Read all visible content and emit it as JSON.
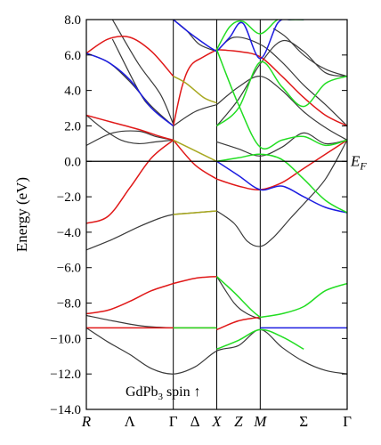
{
  "chart_data": {
    "type": "line",
    "ylabel": "Energy (eV)",
    "ylim": [
      -14.0,
      8.0
    ],
    "y_ticks": [
      8.0,
      6.0,
      4.0,
      2.0,
      0.0,
      -2.0,
      -4.0,
      -6.0,
      -8.0,
      -10.0,
      -12.0,
      -14.0
    ],
    "y_tick_labels": [
      "8.0",
      "6.0",
      "4.0",
      "2.0",
      "0.0",
      "−2.0",
      "−4.0",
      "−6.0",
      "−8.0",
      "−10.0",
      "−12.0",
      "−14.0"
    ],
    "xlim": [
      0,
      6
    ],
    "k_points": [
      {
        "label": "R",
        "x": 0,
        "italic": true,
        "vline": false
      },
      {
        "label": "Λ",
        "x": 1,
        "italic": false,
        "vline": false
      },
      {
        "label": "Γ",
        "x": 2,
        "italic": false,
        "vline": true
      },
      {
        "label": "Δ",
        "x": 2.5,
        "italic": false,
        "vline": false
      },
      {
        "label": "X",
        "x": 3,
        "italic": true,
        "vline": true
      },
      {
        "label": "Z",
        "x": 3.5,
        "italic": true,
        "vline": false
      },
      {
        "label": "M",
        "x": 4,
        "italic": true,
        "vline": true
      },
      {
        "label": "Σ",
        "x": 5,
        "italic": false,
        "vline": false
      },
      {
        "label": "Γ",
        "x": 6,
        "italic": false,
        "vline": false
      }
    ],
    "fermi_level": 0.0,
    "fermi_label": "E",
    "fermi_label_sub": "F",
    "annotation": {
      "text": "GdPb",
      "sub": "3",
      "suffix": " spin ↑"
    },
    "colors": {
      "black": "#3a3a3a",
      "red": "#e01818",
      "blue": "#1c1ce0",
      "green": "#22dd22",
      "olive": "#a8a820"
    },
    "series": [
      {
        "color": "black",
        "x": [
          0,
          0.5,
          1,
          1.5,
          2,
          2.5,
          3,
          3.5,
          4,
          4.5,
          5,
          5.5,
          6
        ],
        "y": [
          -9.4,
          -10.2,
          -10.9,
          -11.7,
          -12.0,
          -11.6,
          -10.7,
          -10.4,
          -9.5,
          -10.5,
          -11.3,
          -11.8,
          -12.0
        ]
      },
      {
        "color": "black",
        "x": [
          0,
          0.6,
          1.3,
          2
        ],
        "y": [
          -8.7,
          -9.0,
          -9.3,
          -9.4
        ]
      },
      {
        "color": "black",
        "x": [
          0,
          0.6,
          1.2,
          1.7,
          2,
          2.5,
          3
        ],
        "y": [
          -5.0,
          -4.4,
          -3.7,
          -3.2,
          -3.0,
          -2.9,
          -2.8
        ]
      },
      {
        "color": "black",
        "x": [
          3,
          3.4,
          3.7,
          4,
          4.3,
          4.7,
          5,
          5.5,
          6
        ],
        "y": [
          -2.8,
          -3.5,
          -4.5,
          -4.8,
          -4.3,
          -3.2,
          -2.4,
          -1.0,
          1.2
        ]
      },
      {
        "color": "black",
        "x": [
          0,
          0.4,
          0.8,
          1.2,
          1.6,
          2
        ],
        "y": [
          2.6,
          1.8,
          1.2,
          1.0,
          1.1,
          1.2
        ]
      },
      {
        "color": "black",
        "x": [
          0,
          0.6,
          1.2,
          1.6,
          2
        ],
        "y": [
          0.9,
          1.6,
          1.7,
          1.4,
          1.2
        ]
      },
      {
        "color": "black",
        "x": [
          0,
          0.5,
          1,
          1.5,
          2
        ],
        "y": [
          6.1,
          5.6,
          4.5,
          3.1,
          2.0
        ]
      },
      {
        "color": "black",
        "x": [
          0.6,
          1.2,
          1.7,
          2
        ],
        "y": [
          8.0,
          5.5,
          3.8,
          2.1
        ]
      },
      {
        "color": "black",
        "x": [
          0.6,
          1.2,
          1.5,
          2
        ],
        "y": [
          6.9,
          4.0,
          3.0,
          2.0
        ]
      },
      {
        "color": "black",
        "x": [
          2,
          2.5,
          3
        ],
        "y": [
          2.0,
          2.8,
          3.2
        ]
      },
      {
        "color": "black",
        "x": [
          2,
          2.3,
          2.6,
          3
        ],
        "y": [
          8.0,
          7.4,
          6.6,
          6.2
        ]
      },
      {
        "color": "black",
        "x": [
          3,
          3.5,
          4,
          4.5,
          5,
          5.5,
          6
        ],
        "y": [
          3.2,
          4.2,
          4.8,
          4.0,
          2.8,
          1.9,
          1.2
        ]
      },
      {
        "color": "black",
        "x": [
          3,
          3.4,
          4,
          4.5,
          5,
          5.5,
          6
        ],
        "y": [
          6.2,
          7.0,
          6.6,
          5.6,
          4.3,
          3.2,
          2.0
        ]
      },
      {
        "color": "black",
        "x": [
          3,
          3.5,
          4,
          4.5,
          5,
          5.5,
          6
        ],
        "y": [
          2.0,
          3.5,
          5.5,
          6.8,
          6.2,
          5.0,
          4.8
        ]
      },
      {
        "color": "black",
        "x": [
          3,
          3.5,
          4,
          4.5,
          5,
          5.5,
          6
        ],
        "y": [
          1.1,
          0.7,
          0.3,
          0.8,
          1.6,
          1.0,
          1.2
        ]
      },
      {
        "color": "black",
        "x": [
          3,
          3.4,
          3.7,
          4
        ],
        "y": [
          -6.5,
          -8.0,
          -8.6,
          -8.9
        ]
      },
      {
        "color": "black",
        "x": [
          4.3,
          4.6,
          5,
          5.5,
          6
        ],
        "y": [
          7.5,
          7.0,
          6.0,
          5.2,
          4.8
        ]
      },
      {
        "color": "red",
        "x": [
          0,
          0.5,
          1,
          1.5,
          2
        ],
        "y": [
          6.1,
          6.9,
          7.0,
          6.2,
          4.8
        ]
      },
      {
        "color": "red",
        "x": [
          0,
          0.5,
          1,
          1.5,
          2
        ],
        "y": [
          -3.5,
          -3.1,
          -1.5,
          0.2,
          1.2
        ]
      },
      {
        "color": "red",
        "x": [
          0,
          0.6,
          1.2,
          1.7,
          2
        ],
        "y": [
          2.6,
          2.2,
          1.8,
          1.4,
          1.2
        ]
      },
      {
        "color": "red",
        "x": [
          0,
          0.5,
          1,
          1.5,
          2
        ],
        "y": [
          -8.6,
          -8.4,
          -7.9,
          -7.3,
          -6.9
        ]
      },
      {
        "color": "red",
        "x": [
          2,
          2.5,
          3
        ],
        "y": [
          -6.9,
          -6.6,
          -6.5
        ]
      },
      {
        "color": "red",
        "x": [
          2,
          2.2,
          2.4,
          2.7,
          3
        ],
        "y": [
          2.0,
          4.2,
          5.4,
          5.9,
          6.3
        ]
      },
      {
        "color": "red",
        "x": [
          2,
          2.5,
          3
        ],
        "y": [
          1.2,
          -0.2,
          -1.0
        ]
      },
      {
        "color": "red",
        "x": [
          3,
          3.5,
          4,
          4.5,
          5,
          5.5,
          6
        ],
        "y": [
          -1.0,
          -1.4,
          -1.6,
          -1.2,
          -0.4,
          0.4,
          1.2
        ]
      },
      {
        "color": "red",
        "x": [
          3,
          3.5,
          4,
          4.5,
          5,
          5.5,
          6
        ],
        "y": [
          6.3,
          6.2,
          5.9,
          4.8,
          3.6,
          2.6,
          2.0
        ]
      },
      {
        "color": "red",
        "x": [
          3,
          3.5,
          4
        ],
        "y": [
          -9.5,
          -9.0,
          -8.8
        ]
      },
      {
        "color": "red",
        "x": [
          0,
          3
        ],
        "y": [
          -9.4,
          -9.4
        ]
      },
      {
        "color": "blue",
        "x": [
          0,
          0.5,
          1,
          1.5,
          2
        ],
        "y": [
          6.1,
          5.6,
          4.6,
          3.0,
          2.0
        ]
      },
      {
        "color": "blue",
        "x": [
          2,
          2.4,
          2.8,
          3
        ],
        "y": [
          8.0,
          7.2,
          6.5,
          6.2
        ]
      },
      {
        "color": "blue",
        "x": [
          3,
          3.3,
          3.6,
          4,
          4.4,
          4.7,
          5
        ],
        "y": [
          6.2,
          7.0,
          7.8,
          5.8,
          7.8,
          8.0,
          8.0
        ]
      },
      {
        "color": "blue",
        "x": [
          3,
          3.5,
          4,
          4.5,
          5,
          5.5,
          6
        ],
        "y": [
          0.0,
          -0.8,
          -1.6,
          -1.4,
          -2.0,
          -2.6,
          -2.9
        ]
      },
      {
        "color": "blue",
        "x": [
          4,
          6
        ],
        "y": [
          -9.4,
          -9.4
        ]
      },
      {
        "color": "green",
        "x": [
          3,
          3.3,
          3.6,
          4,
          4.4,
          4.7,
          5
        ],
        "y": [
          6.3,
          7.6,
          7.9,
          7.2,
          8.0,
          8.0,
          8.0
        ]
      },
      {
        "color": "green",
        "x": [
          3,
          3.5,
          4,
          4.5,
          5,
          5.5,
          6
        ],
        "y": [
          6.3,
          3.2,
          0.8,
          1.2,
          1.4,
          0.9,
          1.2
        ]
      },
      {
        "color": "green",
        "x": [
          3,
          3.5,
          4,
          4.5,
          5,
          5.5,
          6
        ],
        "y": [
          2.0,
          3.0,
          5.6,
          4.2,
          3.1,
          4.4,
          4.8
        ]
      },
      {
        "color": "green",
        "x": [
          3,
          3.5,
          4,
          4.5,
          5,
          5.5,
          6
        ],
        "y": [
          0.0,
          0.2,
          0.4,
          0.1,
          -1.0,
          -2.2,
          -2.9
        ]
      },
      {
        "color": "green",
        "x": [
          2,
          2.5,
          3
        ],
        "y": [
          -9.4,
          -9.4,
          -9.4
        ]
      },
      {
        "color": "green",
        "x": [
          3,
          3.4,
          3.8,
          4
        ],
        "y": [
          -6.5,
          -7.4,
          -8.4,
          -8.8
        ]
      },
      {
        "color": "green",
        "x": [
          4,
          4.5,
          5,
          5.5,
          6
        ],
        "y": [
          -8.8,
          -8.6,
          -8.2,
          -7.3,
          -6.9
        ]
      },
      {
        "color": "green",
        "x": [
          3,
          3.5,
          4,
          4.5,
          5
        ],
        "y": [
          -10.6,
          -10.1,
          -9.5,
          -9.9,
          -10.6
        ]
      },
      {
        "color": "olive",
        "x": [
          2,
          2.3,
          2.7,
          3
        ],
        "y": [
          4.8,
          4.4,
          3.6,
          3.3
        ]
      },
      {
        "color": "olive",
        "x": [
          2,
          2.5,
          3
        ],
        "y": [
          -3.0,
          -2.9,
          -2.8
        ]
      },
      {
        "color": "olive",
        "x": [
          2,
          2.5,
          3
        ],
        "y": [
          1.2,
          0.6,
          0.0
        ]
      }
    ]
  }
}
